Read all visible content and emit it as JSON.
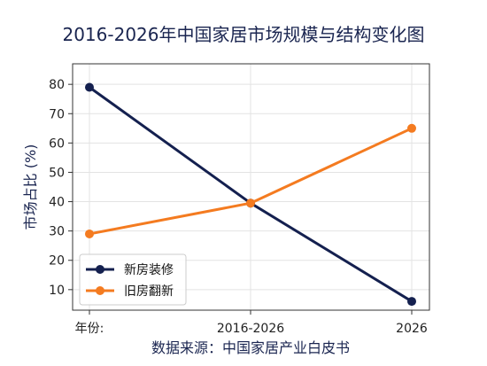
{
  "chart_data": {
    "type": "line",
    "title": "2016-2026年中国家居市场规模与结构变化图",
    "xlabel": "数据来源：中国家居产业白皮书",
    "ylabel": "市场占比 (%)",
    "categories": [
      "年份:",
      "2016-2026",
      "2026"
    ],
    "ylim": [
      3,
      87
    ],
    "yticks": [
      10,
      20,
      30,
      40,
      50,
      60,
      70,
      80
    ],
    "grid": true,
    "legend_position": "bottom-left",
    "series": [
      {
        "name": "新房装修",
        "values": [
          79,
          39.5,
          6
        ],
        "color": "#14204f"
      },
      {
        "name": "旧房翻新",
        "values": [
          29,
          39.5,
          65
        ],
        "color": "#f47b20"
      }
    ]
  }
}
